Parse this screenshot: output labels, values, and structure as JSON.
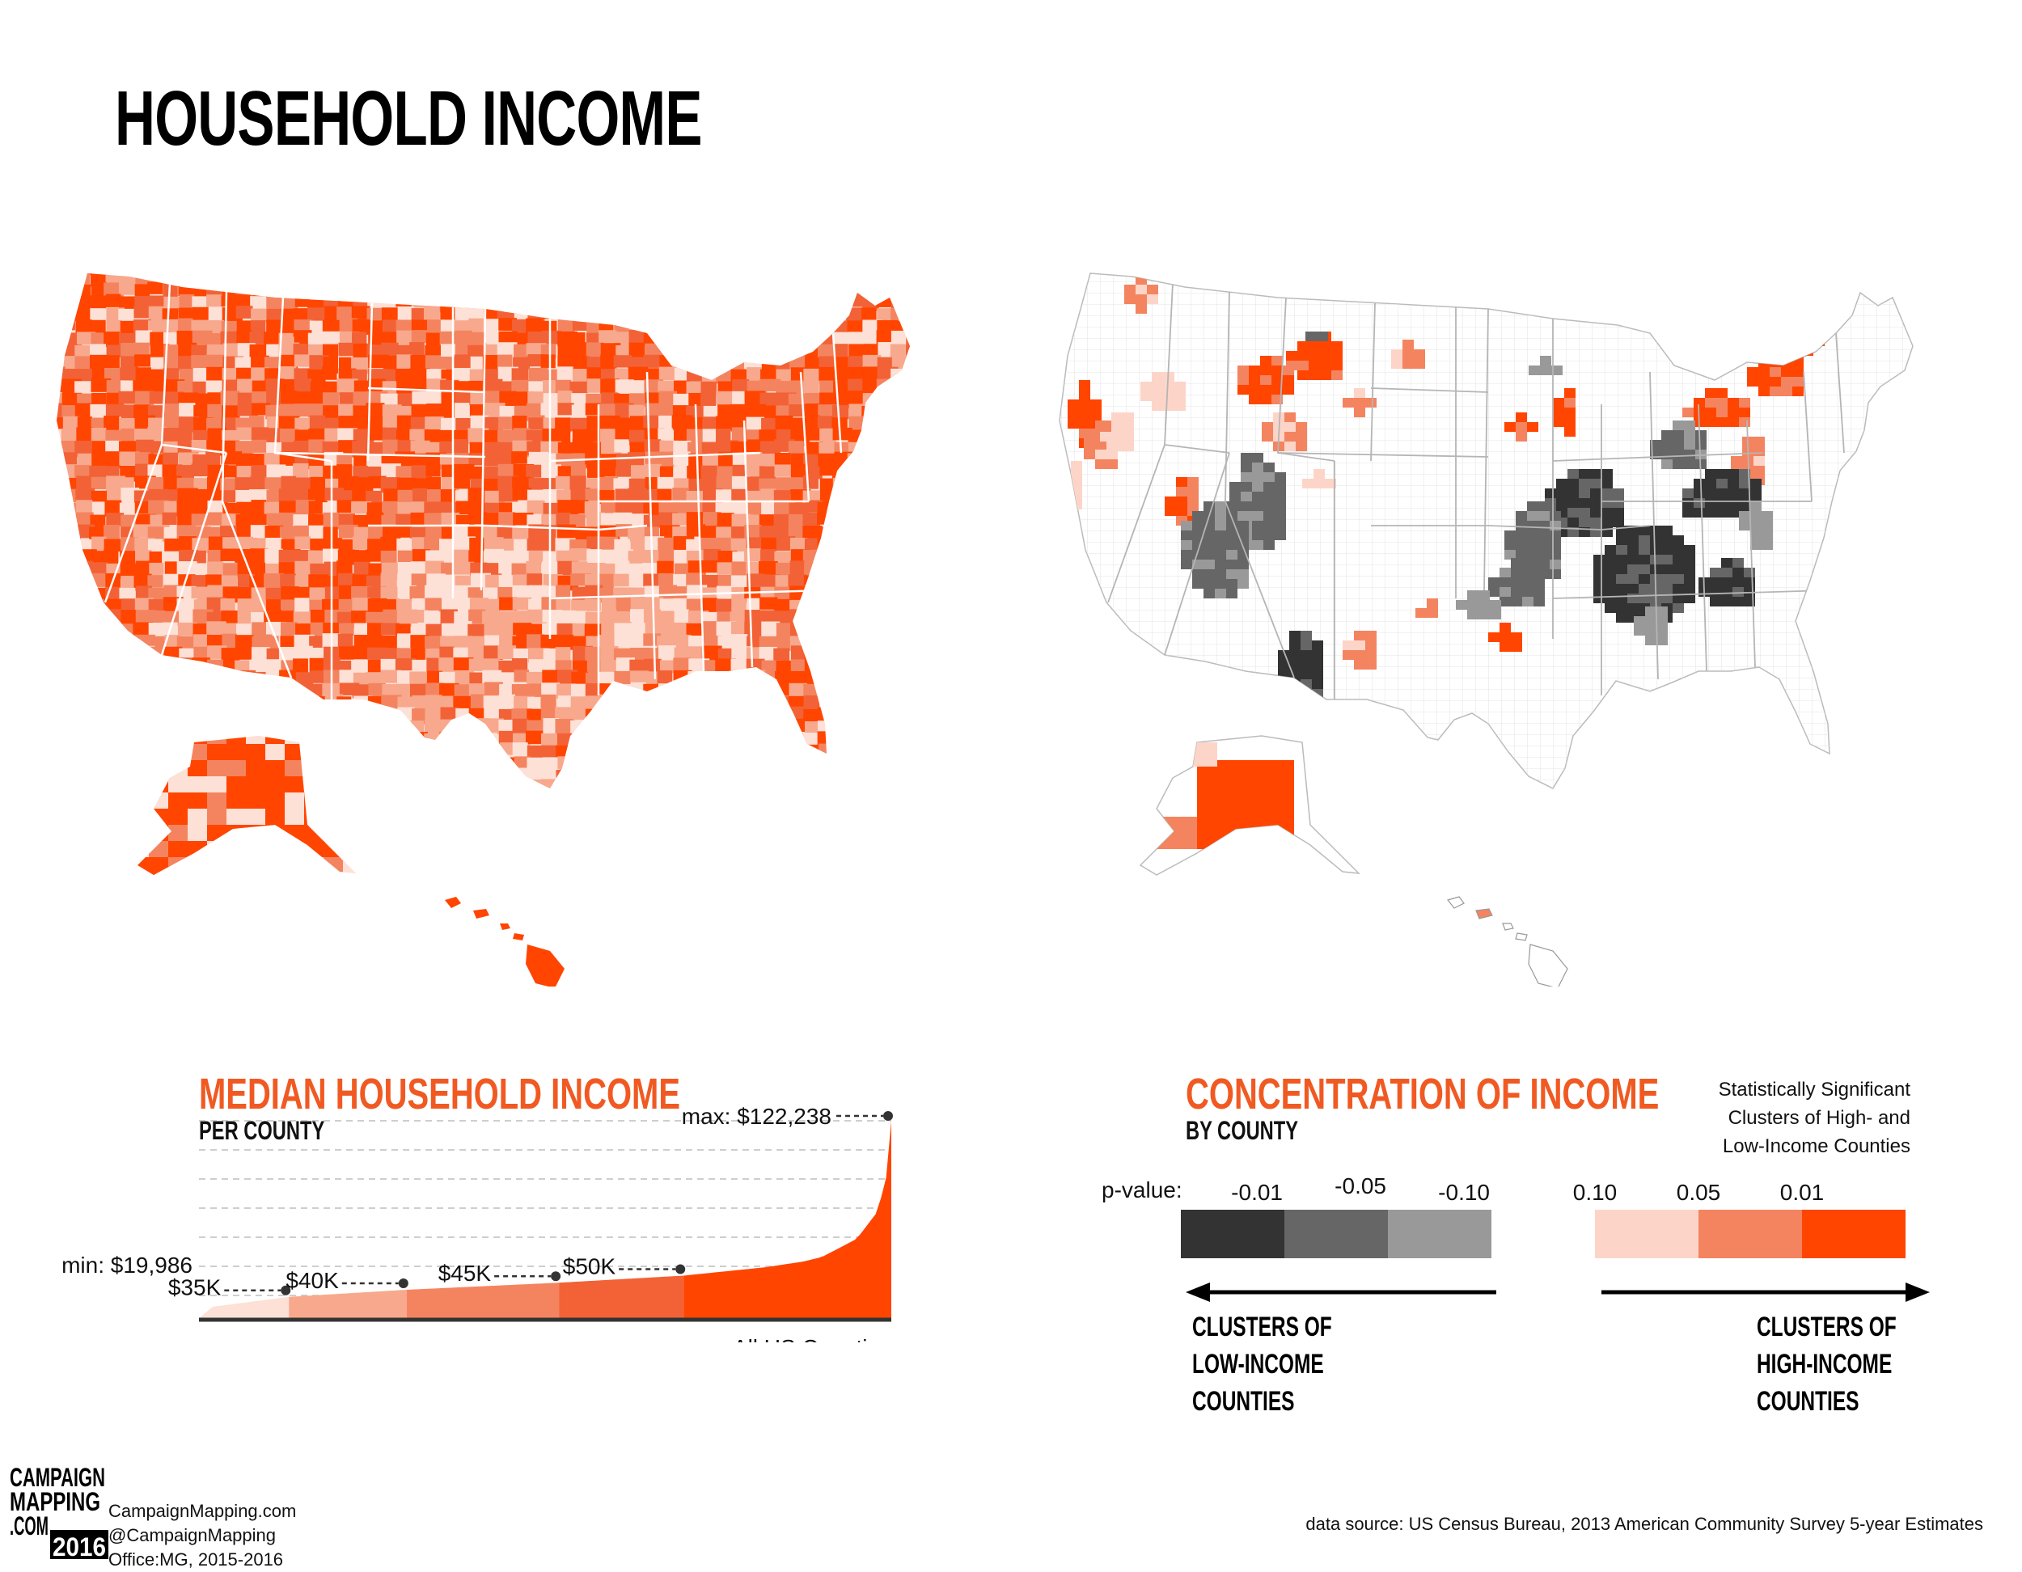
{
  "title": "HOUSEHOLD INCOME",
  "colors": {
    "accent": "#f05a22",
    "income_ramp": [
      "#fde0d6",
      "#f8a88c",
      "#f4845f",
      "#f26236",
      "#ff4500"
    ],
    "pvalue_ramp": [
      "#333333",
      "#666666",
      "#999999",
      "#ffffff",
      "#fdd5c8",
      "#f4845f",
      "#ff4500"
    ],
    "state_border": "#ffffff",
    "county_grid": "#cfcfcf"
  },
  "map_left": {
    "description_icon": "us-county-choropleth-map"
  },
  "map_right": {
    "description_icon": "us-county-cluster-map"
  },
  "chart_data": {
    "type": "area",
    "title": "MEDIAN HOUSEHOLD INCOME",
    "subtitle": "PER COUNTY",
    "xlabel": "All US Counties",
    "min_label": "min: $19,986",
    "max_label": "max: $122,238",
    "min": 19986,
    "max": 122238,
    "markers": [
      {
        "label": "$35K",
        "value": 35000,
        "rank_fraction": 0.13
      },
      {
        "label": "$40K",
        "value": 40000,
        "rank_fraction": 0.3
      },
      {
        "label": "$45K",
        "value": 45000,
        "rank_fraction": 0.52
      },
      {
        "label": "$50K",
        "value": 50000,
        "rank_fraction": 0.7
      }
    ],
    "curve": [
      {
        "rank_fraction": 0.0,
        "value": 19986
      },
      {
        "rank_fraction": 0.02,
        "value": 28000
      },
      {
        "rank_fraction": 0.13,
        "value": 35000
      },
      {
        "rank_fraction": 0.3,
        "value": 40000
      },
      {
        "rank_fraction": 0.52,
        "value": 45000
      },
      {
        "rank_fraction": 0.7,
        "value": 50000
      },
      {
        "rank_fraction": 0.82,
        "value": 56000
      },
      {
        "rank_fraction": 0.9,
        "value": 62000
      },
      {
        "rank_fraction": 0.95,
        "value": 70000
      },
      {
        "rank_fraction": 0.98,
        "value": 82000
      },
      {
        "rank_fraction": 0.995,
        "value": 100000
      },
      {
        "rank_fraction": 1.0,
        "value": 122238
      }
    ]
  },
  "concentration": {
    "title": "CONCENTRATION OF INCOME",
    "subtitle": "BY COUNTY",
    "note_lines": [
      "Statistically Significant",
      "Clusters of High- and",
      "Low-Income Counties"
    ],
    "pvalue_label": "p-value:",
    "legend_labels": [
      "-0.01",
      "-0.05",
      "-0.10",
      "0.10",
      "0.05",
      "0.01"
    ],
    "low_label": [
      "CLUSTERS OF",
      "LOW-INCOME",
      "COUNTIES"
    ],
    "high_label": [
      "CLUSTERS OF",
      "HIGH-INCOME",
      "COUNTIES"
    ]
  },
  "footer": {
    "logo_lines": [
      "CAMPAIGN",
      "MAPPING",
      ".COM",
      "2016"
    ],
    "site": "CampaignMapping.com",
    "handle": "@CampaignMapping",
    "office": "Office:MG, 2015-2016",
    "source": "data source: US Census Bureau, 2013 American Community Survey 5-year Estimates"
  }
}
